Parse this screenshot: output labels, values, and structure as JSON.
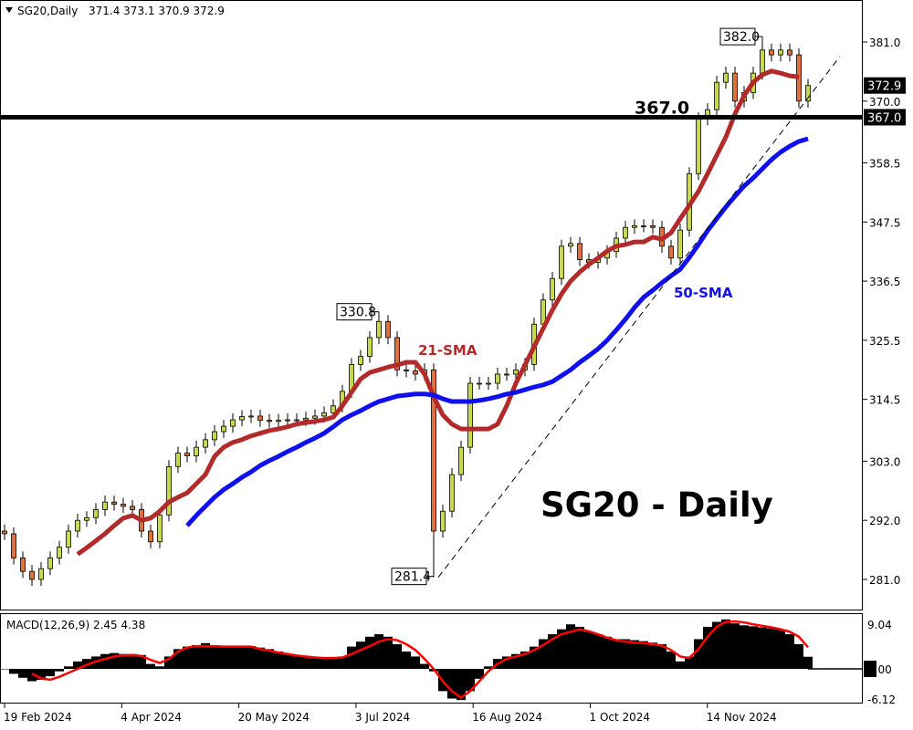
{
  "header": {
    "symbol_timeframe": "SG20,Daily",
    "ohlc": "371.4 373.1 370.9 372.9"
  },
  "chart_data": [
    {
      "type": "candlestick",
      "title": "SG20 - Daily",
      "y_ticks": [
        "381.0",
        "370.0",
        "358.5",
        "347.5",
        "336.5",
        "325.5",
        "314.5",
        "303.0",
        "292.0",
        "281.0"
      ],
      "x_ticks": [
        "19 Feb 2024",
        "4 Apr 2024",
        "20 May 2024",
        "3 Jul 2024",
        "16 Aug 2024",
        "1 Oct 2024",
        "14 Nov 2024"
      ],
      "ylim": [
        276,
        388
      ],
      "grid": false,
      "colors": {
        "up": "#c9d94e",
        "down": "#e0703c",
        "sma21": "#b32a2a",
        "sma50": "#1010ee",
        "level": "#000000"
      },
      "close": [
        289.5,
        285,
        282.5,
        281,
        283,
        285,
        287,
        290,
        292,
        292.5,
        294,
        295.4,
        295,
        294.6,
        294,
        290,
        288,
        293,
        302,
        304.5,
        304,
        305.6,
        307,
        308.5,
        309.5,
        310.7,
        311.3,
        311.4,
        310.6,
        310.4,
        310.6,
        310.7,
        310.7,
        311,
        311.4,
        312,
        313.3,
        316,
        321,
        322.5,
        326,
        329,
        326,
        320,
        319.8,
        319.2,
        320,
        290,
        293.7,
        300.5,
        305.6,
        317.5,
        317.5,
        317.5,
        319.2,
        319.2,
        320,
        321,
        328.5,
        333,
        337,
        343,
        343.5,
        340.5,
        340,
        340.8,
        342,
        344.5,
        346.5,
        346.8,
        346.8,
        346.5,
        343,
        340.8,
        346,
        356.5,
        366.7,
        368.4,
        373.5,
        375.2,
        370,
        371.6,
        375.2,
        379.5,
        378.6,
        379.5,
        378.6,
        370,
        372.9
      ],
      "series": [
        {
          "name": "21-SMA",
          "start_bar": 8,
          "values": [
            285.7,
            286.9,
            288.2,
            289.5,
            291,
            292.4,
            292.9,
            292,
            292.4,
            293.7,
            295.4,
            296.3,
            297.1,
            298.8,
            300.5,
            303.9,
            305.6,
            306.5,
            307,
            307.7,
            308.2,
            308.7,
            309,
            309.4,
            309.9,
            310.2,
            310.4,
            310.7,
            311.2,
            313.3,
            315.8,
            318.3,
            319.5,
            320,
            320.5,
            320.9,
            321.4,
            321.4,
            319.2,
            315,
            311.6,
            309.9,
            309,
            309,
            309,
            309,
            309.9,
            313.3,
            317.5,
            320.9,
            324.3,
            327.7,
            331.1,
            334.1,
            336.5,
            338.2,
            339.6,
            340.8,
            342.1,
            343,
            343.3,
            343.8,
            343.8,
            344.7,
            344.3,
            345.5,
            348.1,
            350.6,
            353.2,
            356.5,
            359.9,
            363.3,
            367.6,
            371,
            373.5,
            374.9,
            375.6,
            375.2,
            374.7,
            374.5
          ]
        },
        {
          "name": "50-SMA",
          "start_bar": 20,
          "values": [
            291,
            292.9,
            294.6,
            296.3,
            297.7,
            298.8,
            300,
            301,
            302.2,
            303.1,
            303.9,
            304.8,
            305.6,
            306.5,
            307.3,
            308.2,
            309.4,
            310.7,
            311.6,
            312.4,
            313.3,
            314.1,
            314.6,
            315.1,
            315.3,
            315.5,
            315.5,
            315.3,
            314.6,
            314.1,
            314.1,
            314.1,
            314.3,
            314.6,
            315,
            315.5,
            315.8,
            316.3,
            316.8,
            317.2,
            317.8,
            318.9,
            320,
            321.4,
            322.6,
            323.9,
            325.5,
            327.4,
            329.4,
            331.6,
            333.5,
            334.8,
            336.2,
            337.5,
            338.7,
            340.9,
            343.3,
            345.9,
            348.1,
            350.3,
            352.3,
            354.2,
            355.7,
            357.4,
            359.1,
            360.5,
            361.6,
            362.5,
            363
          ]
        }
      ],
      "horizontal_level": {
        "value": 367.0,
        "label": "367.0",
        "axis_label": "367.0"
      },
      "last_price": {
        "value": 372.9,
        "label": "372.9"
      },
      "trendline": {
        "from": {
          "bar": 47.5,
          "value": 281.4
        },
        "to": {
          "bar": 91.5,
          "value": 378.3
        }
      },
      "annotations": [
        {
          "label": "382.0",
          "bar": 83,
          "value": 382.0
        },
        {
          "label": "330.8",
          "bar": 41,
          "value": 330.8
        },
        {
          "label": "281.4",
          "bar": 47,
          "value": 281.4
        },
        {
          "label": "21-SMA",
          "series": "21-SMA"
        },
        {
          "label": "50-SMA",
          "series": "50-SMA"
        }
      ]
    },
    {
      "type": "bar+line",
      "title": "MACD(12,26,9) 2.45 4.38",
      "y_ticks": [
        "9.04",
        "0.00",
        "-6.12"
      ],
      "colors": {
        "histogram": "#000000",
        "signal": "#ff0000"
      },
      "histogram": [
        0,
        -1,
        -1.8,
        -2.5,
        -2.2,
        -1.5,
        -0.5,
        0.5,
        1.5,
        2,
        2.5,
        3,
        3.2,
        3,
        3,
        2.8,
        1,
        0.5,
        2.5,
        4,
        4.5,
        4.8,
        5.2,
        4.8,
        4.6,
        4.6,
        4.6,
        4.6,
        4.3,
        4,
        3.5,
        3,
        2.7,
        2.4,
        2.3,
        2.2,
        2.2,
        2.5,
        4.5,
        5.5,
        6.5,
        7,
        6.5,
        5,
        3.5,
        2.5,
        1,
        -0.5,
        -4.5,
        -6,
        -6.3,
        -4.5,
        -2,
        0.5,
        2,
        2.5,
        3,
        3.5,
        4.5,
        6,
        7,
        8,
        9,
        8.5,
        7.5,
        7,
        6.5,
        6,
        6,
        5.8,
        5.6,
        5.3,
        5,
        3.5,
        1.5,
        2.5,
        6,
        8.5,
        9.5,
        10,
        9.2,
        8.8,
        8.6,
        8.4,
        8.2,
        8,
        7,
        5,
        2.45
      ],
      "signal": [
        null,
        null,
        null,
        -1,
        -1.9,
        -2.2,
        -1.6,
        -0.8,
        0,
        0.8,
        1.5,
        2,
        2.5,
        2.7,
        2.8,
        2.6,
        1.8,
        1.2,
        2,
        3.5,
        4.3,
        4.6,
        4.6,
        4.6,
        4.5,
        4.5,
        4.5,
        4.5,
        4,
        3.7,
        3.3,
        3,
        2.7,
        2.5,
        2.3,
        2.2,
        2.2,
        2.3,
        3,
        3.8,
        4.6,
        5.5,
        6,
        5.8,
        5,
        3.8,
        2,
        0,
        -2.5,
        -4.5,
        -5.8,
        -4.5,
        -2.5,
        -0.5,
        1,
        2,
        2.5,
        3,
        3.8,
        4.8,
        6,
        7,
        7.5,
        8,
        7.6,
        7,
        6.3,
        5.8,
        5.5,
        5.3,
        5.2,
        5,
        4.7,
        3.8,
        2.5,
        2.2,
        4,
        6.5,
        8.5,
        9.5,
        9.6,
        9.4,
        9,
        8.7,
        8.4,
        8,
        7.5,
        6.5,
        4.38
      ]
    }
  ]
}
